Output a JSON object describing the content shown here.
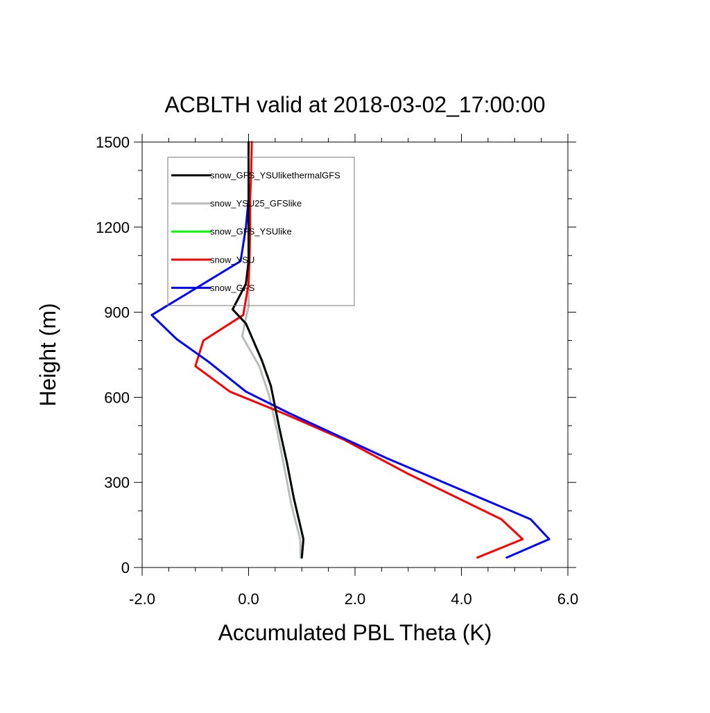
{
  "chart_data": {
    "type": "line",
    "title": "ACBLTH valid at 2018-03-02_17:00:00",
    "xlabel": "Accumulated PBL Theta (K)",
    "ylabel": "Height (m)",
    "xlim": [
      -2.0,
      6.0
    ],
    "ylim": [
      0,
      1500
    ],
    "xticks": [
      -2.0,
      0.0,
      2.0,
      4.0,
      6.0
    ],
    "xtick_labels": [
      "-2.0",
      "0.0",
      "2.0",
      "4.0",
      "6.0"
    ],
    "yticks": [
      0,
      300,
      600,
      900,
      1200,
      1500
    ],
    "ytick_labels": [
      "0",
      "300",
      "600",
      "900",
      "1200",
      "1500"
    ],
    "grid": false,
    "legend_position": "top-left",
    "series": [
      {
        "name": "snow_GFS_YSUlikethermalGFS",
        "color": "#000000",
        "points": [
          [
            1.0,
            35
          ],
          [
            1.03,
            100
          ],
          [
            0.85,
            245
          ],
          [
            0.72,
            370
          ],
          [
            0.58,
            490
          ],
          [
            0.42,
            640
          ],
          [
            0.25,
            730
          ],
          [
            -0.05,
            860
          ],
          [
            -0.3,
            910
          ],
          [
            -0.05,
            1000
          ],
          [
            0.0,
            1080
          ],
          [
            0.0,
            1200
          ],
          [
            0.0,
            1300
          ],
          [
            0.0,
            1420
          ],
          [
            0.0,
            1500
          ]
        ]
      },
      {
        "name": "snow_YSU25_GFSlike",
        "color": "#bbbbbb",
        "points": [
          [
            0.98,
            35
          ],
          [
            0.97,
            100
          ],
          [
            0.8,
            225
          ],
          [
            0.68,
            345
          ],
          [
            0.55,
            470
          ],
          [
            0.38,
            610
          ],
          [
            0.2,
            710
          ],
          [
            -0.12,
            815
          ],
          [
            -0.05,
            880
          ],
          [
            0.0,
            920
          ],
          [
            0.0,
            1000
          ],
          [
            0.0,
            1100
          ],
          [
            0.0,
            1200
          ],
          [
            0.0,
            1300
          ],
          [
            0.0,
            1400
          ],
          [
            0.0,
            1500
          ]
        ]
      },
      {
        "name": "snow_GFS_YSUlike",
        "color": "#00ff00",
        "points": [
          [
            1.0,
            35
          ],
          [
            1.03,
            100
          ],
          [
            0.85,
            245
          ],
          [
            0.72,
            370
          ],
          [
            0.58,
            490
          ],
          [
            0.42,
            640
          ],
          [
            0.25,
            730
          ],
          [
            -0.05,
            860
          ],
          [
            -0.3,
            910
          ],
          [
            -0.05,
            1000
          ],
          [
            0.0,
            1080
          ],
          [
            0.0,
            1200
          ],
          [
            0.0,
            1300
          ],
          [
            0.0,
            1420
          ],
          [
            0.0,
            1500
          ]
        ]
      },
      {
        "name": "snow_YSU",
        "color": "#ff0000",
        "points": [
          [
            4.3,
            35
          ],
          [
            5.15,
            100
          ],
          [
            4.75,
            170
          ],
          [
            3.0,
            330
          ],
          [
            1.8,
            450
          ],
          [
            0.7,
            540
          ],
          [
            -0.35,
            620
          ],
          [
            -1.0,
            710
          ],
          [
            -0.85,
            800
          ],
          [
            -0.1,
            890
          ],
          [
            0.0,
            1000
          ],
          [
            0.02,
            1100
          ],
          [
            0.03,
            1200
          ],
          [
            0.03,
            1300
          ],
          [
            0.05,
            1400
          ],
          [
            0.06,
            1500
          ]
        ]
      },
      {
        "name": "snow_GFS",
        "color": "#0000ff",
        "points": [
          [
            4.85,
            35
          ],
          [
            5.65,
            100
          ],
          [
            5.3,
            170
          ],
          [
            2.6,
            385
          ],
          [
            0.75,
            545
          ],
          [
            -0.05,
            620
          ],
          [
            -0.75,
            725
          ],
          [
            -1.35,
            805
          ],
          [
            -1.82,
            890
          ],
          [
            -0.15,
            1080
          ],
          [
            -0.05,
            1200
          ],
          [
            0.0,
            1300
          ],
          [
            0.0,
            1400
          ],
          [
            0.0,
            1500
          ]
        ]
      }
    ]
  }
}
